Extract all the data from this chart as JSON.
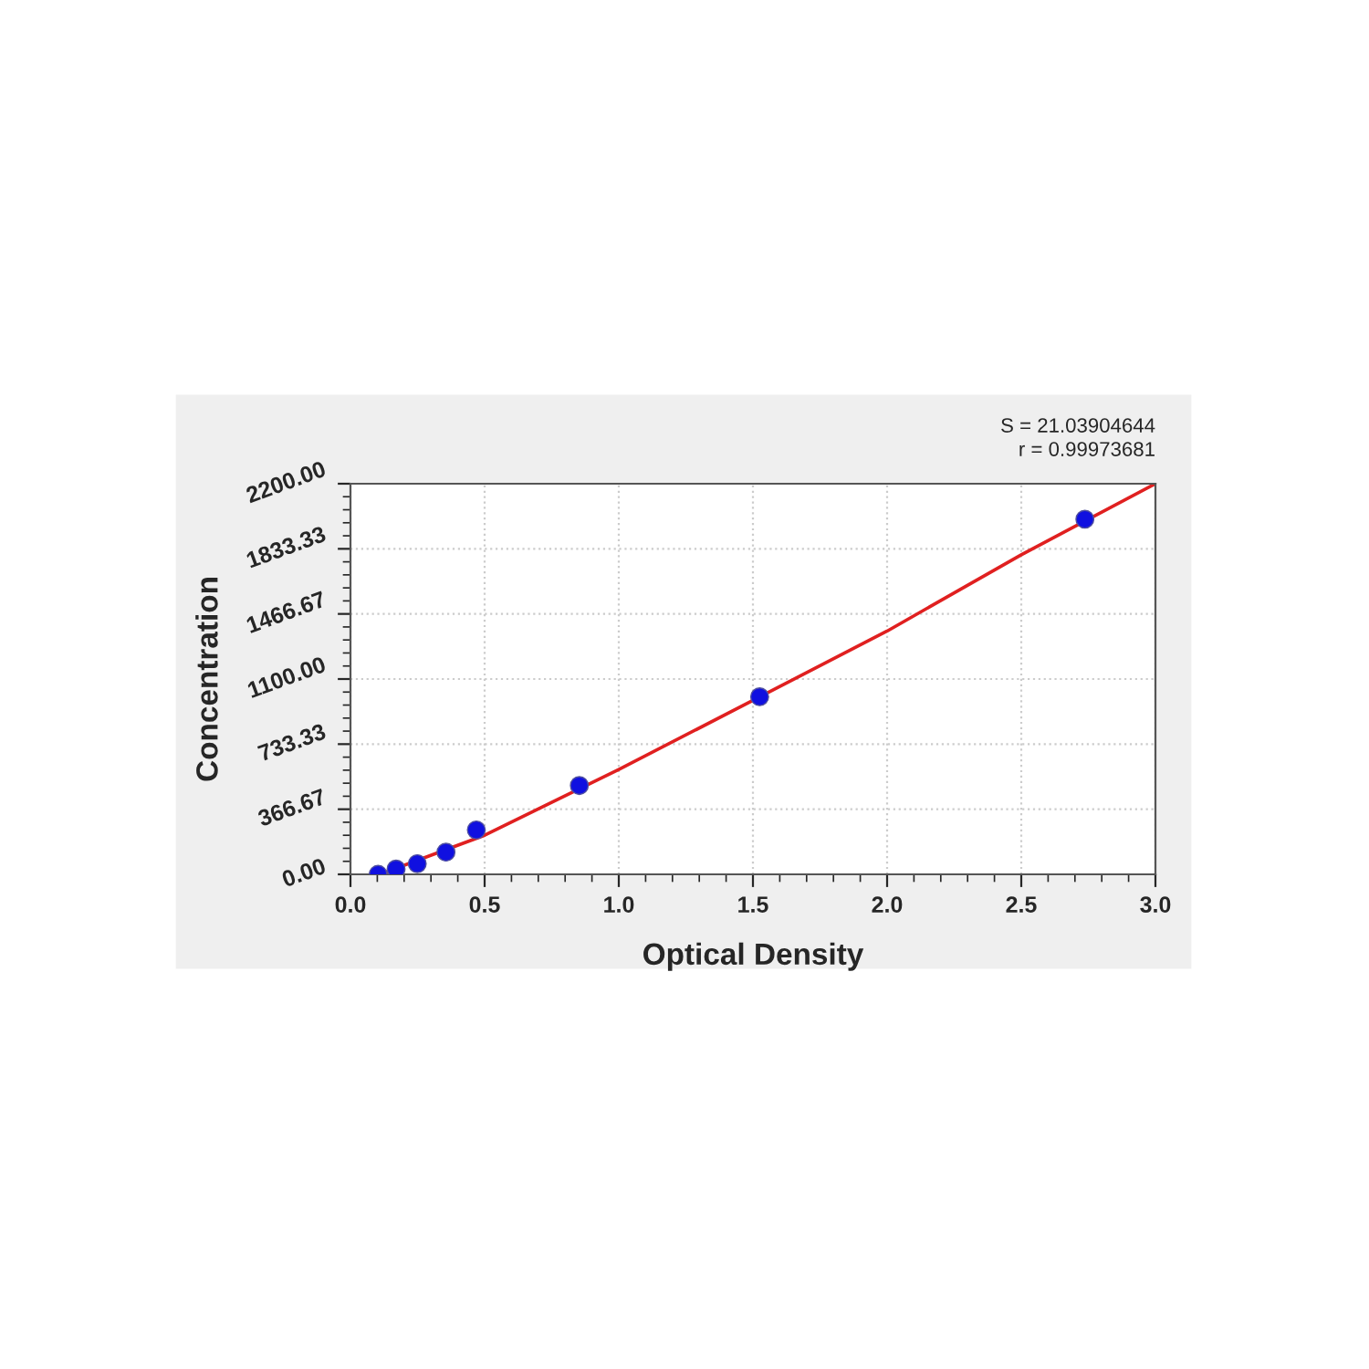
{
  "chart_data": {
    "type": "scatter",
    "xlabel": "Optical Density",
    "ylabel": "Concentration",
    "annotations": [
      "S = 21.03904644",
      "r = 0.99973681"
    ],
    "xlim": [
      0,
      3
    ],
    "ylim": [
      0,
      2200
    ],
    "xticks": [
      {
        "value": 0,
        "label": "0.0"
      },
      {
        "value": 0.5,
        "label": "0.5"
      },
      {
        "value": 1,
        "label": "1.0"
      },
      {
        "value": 1.5,
        "label": "1.5"
      },
      {
        "value": 2,
        "label": "2.0"
      },
      {
        "value": 2.5,
        "label": "2.5"
      },
      {
        "value": 3,
        "label": "3.0"
      }
    ],
    "yticks": [
      {
        "value": 0,
        "label": "0.00"
      },
      {
        "value": 366.67,
        "label": "366.67"
      },
      {
        "value": 733.33,
        "label": "733.33"
      },
      {
        "value": 1100,
        "label": "1100.00"
      },
      {
        "value": 1466.67,
        "label": "1466.67"
      },
      {
        "value": 1833.33,
        "label": "1833.33"
      },
      {
        "value": 2200,
        "label": "2200.00"
      }
    ],
    "grid": true,
    "marker": "circle",
    "series": [
      {
        "type": "line",
        "marker": "none",
        "color": "#e02020",
        "x": [
          0.11,
          0.5,
          1.0,
          1.5,
          2.0,
          2.5,
          3.0
        ],
        "values": [
          0,
          220,
          590,
          980,
          1370,
          1800,
          2200
        ]
      },
      {
        "color": "#1010e0",
        "x": [
          0.103,
          0.17,
          0.249,
          0.356,
          0.469,
          0.853,
          1.525,
          2.737
        ],
        "values": [
          0,
          30,
          60,
          125,
          250,
          500,
          1000,
          2000
        ]
      }
    ]
  }
}
